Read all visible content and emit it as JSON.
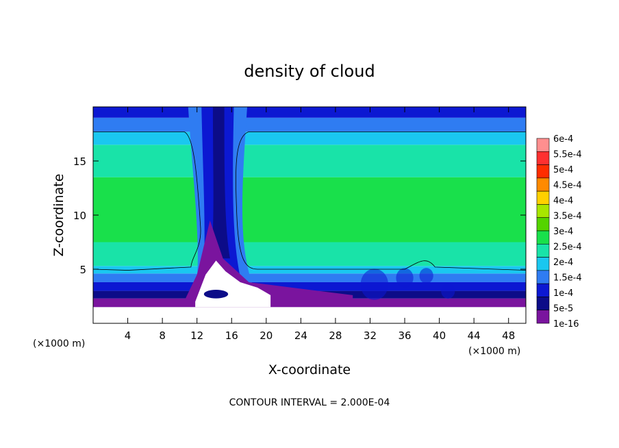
{
  "chart_data": {
    "type": "heatmap",
    "title": "density of cloud",
    "xlabel": "X-coordinate",
    "ylabel": "Z-coordinate",
    "x_unit_note": "(×1000 m)",
    "x_unit_note_right": "(×1000 m)",
    "footer": "CONTOUR INTERVAL = 2.000E-04",
    "xlim": [
      0,
      50
    ],
    "ylim": [
      0,
      20
    ],
    "x_ticks": [
      4,
      8,
      12,
      16,
      20,
      24,
      28,
      32,
      36,
      40,
      44,
      48
    ],
    "y_ticks": [
      5,
      10,
      15
    ],
    "colorbar": {
      "labels": [
        "6e-4",
        "5.5e-4",
        "5e-4",
        "4.5e-4",
        "4e-4",
        "3.5e-4",
        "3e-4",
        "2.5e-4",
        "2e-4",
        "1.5e-4",
        "1e-4",
        "5e-5",
        "1e-16"
      ],
      "colors": [
        "#ff8f8f",
        "#ff3030",
        "#ff2d00",
        "#ff8a00",
        "#ffd000",
        "#a8e600",
        "#54d400",
        "#19e04b",
        "#19e3a8",
        "#1ac7f0",
        "#2f7cf2",
        "#0c18d2",
        "#0c0c88",
        "#7a149e"
      ]
    },
    "field": {
      "bands_z": [
        {
          "z0": 0.0,
          "z1": 1.5,
          "value": "none",
          "color": "#ffffff"
        },
        {
          "z0": 1.5,
          "z1": 2.3,
          "value": "1e-16",
          "color": "#7a149e"
        },
        {
          "z0": 2.3,
          "z1": 3.0,
          "value": "5e-5",
          "color": "#0c0c88"
        },
        {
          "z0": 3.0,
          "z1": 3.8,
          "value": "1e-4",
          "color": "#0c18d2"
        },
        {
          "z0": 3.8,
          "z1": 4.6,
          "value": "1.5e-4",
          "color": "#2f7cf2"
        },
        {
          "z0": 4.6,
          "z1": 5.3,
          "value": "2e-4",
          "color": "#1ac7f0"
        },
        {
          "z0": 5.3,
          "z1": 7.5,
          "value": "2.5e-4",
          "color": "#19e3a8"
        },
        {
          "z0": 7.5,
          "z1": 13.5,
          "value": "3e-4",
          "color": "#19e04b"
        },
        {
          "z0": 13.5,
          "z1": 16.5,
          "value": "2.5e-4",
          "color": "#19e3a8"
        },
        {
          "z0": 16.5,
          "z1": 17.7,
          "value": "2e-4",
          "color": "#1ac7f0"
        },
        {
          "z0": 17.7,
          "z1": 19.0,
          "value": "1.5e-4",
          "color": "#2f7cf2"
        },
        {
          "z0": 19.0,
          "z1": 20.0,
          "value": "1e-4",
          "color": "#0c18d2"
        }
      ],
      "updraft_column": {
        "x_center": 14.5,
        "x_halfwidth": 2.2,
        "z_bottom": 3.0,
        "z_top": 20.0
      },
      "contour_levels": [
        0.0002,
        0.0004
      ]
    }
  }
}
